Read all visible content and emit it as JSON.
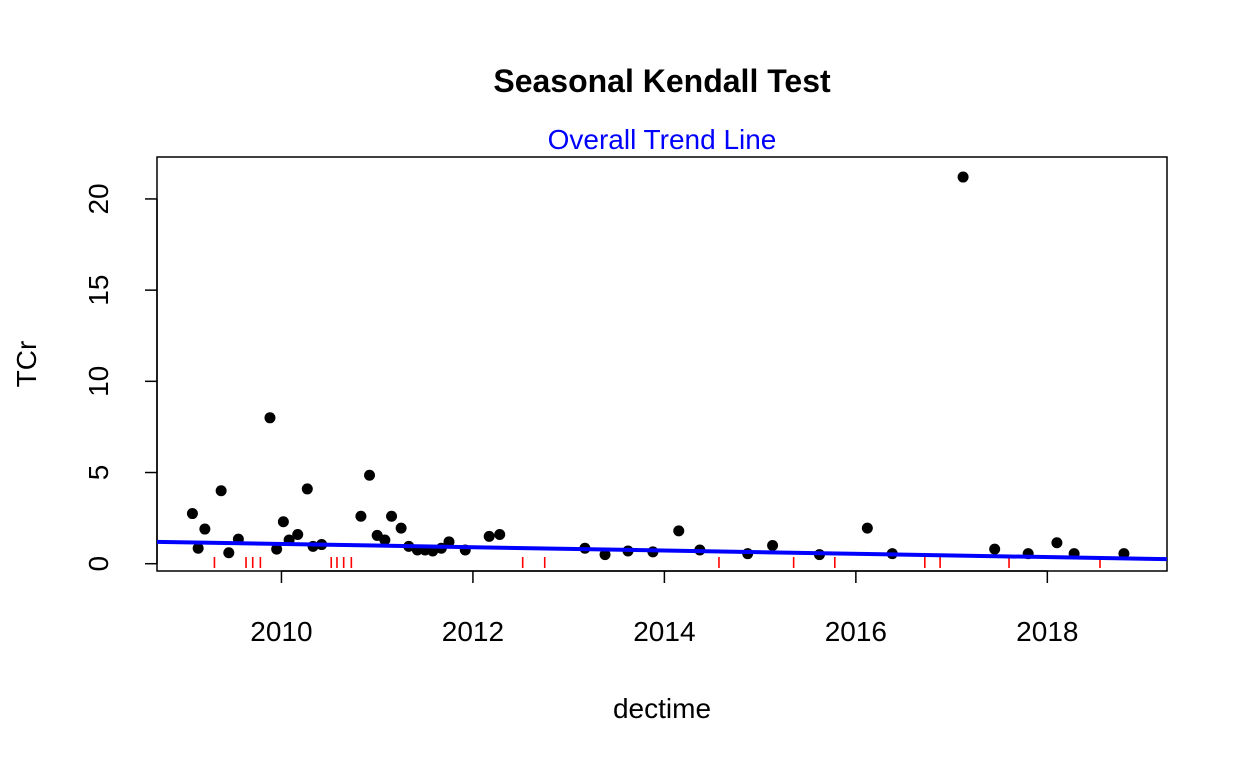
{
  "chart_data": {
    "type": "scatter",
    "title": "Seasonal Kendall Test",
    "subtitle": "Overall Trend Line",
    "xlabel": "dectime",
    "ylabel": "TCr",
    "xlim": [
      2008.7,
      2019.25
    ],
    "ylim": [
      -0.4,
      22.3
    ],
    "x_ticks": [
      2010,
      2012,
      2014,
      2016,
      2018
    ],
    "x_tick_labels": [
      "2010",
      "2012",
      "2014",
      "2016",
      "2018"
    ],
    "y_ticks": [
      0,
      5,
      10,
      15,
      20
    ],
    "y_tick_labels": [
      "0",
      "5",
      "10",
      "15",
      "20"
    ],
    "series": [
      {
        "name": "TCr",
        "x": [
          2009.07,
          2009.13,
          2009.2,
          2009.37,
          2009.45,
          2009.55,
          2009.88,
          2009.95,
          2010.02,
          2010.08,
          2010.17,
          2010.27,
          2010.33,
          2010.42,
          2010.83,
          2010.92,
          2011.0,
          2011.08,
          2011.15,
          2011.25,
          2011.33,
          2011.42,
          2011.5,
          2011.58,
          2011.67,
          2011.75,
          2011.92,
          2012.17,
          2012.28,
          2013.17,
          2013.38,
          2013.62,
          2013.88,
          2014.15,
          2014.37,
          2014.87,
          2015.13,
          2015.62,
          2016.12,
          2016.38,
          2017.12,
          2017.45,
          2017.8,
          2018.1,
          2018.28,
          2018.8
        ],
        "y": [
          2.75,
          0.85,
          1.9,
          4.0,
          0.6,
          1.35,
          8.0,
          0.8,
          2.3,
          1.3,
          1.6,
          4.1,
          0.95,
          1.05,
          2.6,
          4.85,
          1.55,
          1.3,
          2.6,
          1.95,
          0.95,
          0.75,
          0.75,
          0.7,
          0.85,
          1.2,
          0.75,
          1.5,
          1.6,
          0.85,
          0.5,
          0.7,
          0.65,
          1.8,
          0.75,
          0.55,
          1.0,
          0.5,
          1.95,
          0.55,
          21.2,
          0.8,
          0.55,
          1.15,
          0.55,
          0.55
        ],
        "color": "#000000"
      }
    ],
    "trend_line": {
      "name": "Overall Trend Line",
      "x": [
        2008.7,
        2019.25
      ],
      "y": [
        1.2,
        0.25
      ],
      "color": "#0000ff"
    },
    "rug_ticks": {
      "color": "#ff0000",
      "x": [
        2009.3,
        2009.63,
        2009.7,
        2009.78,
        2010.52,
        2010.58,
        2010.65,
        2010.73,
        2012.52,
        2012.75,
        2014.57,
        2015.35,
        2015.78,
        2016.72,
        2016.88,
        2017.6,
        2018.55
      ]
    }
  }
}
